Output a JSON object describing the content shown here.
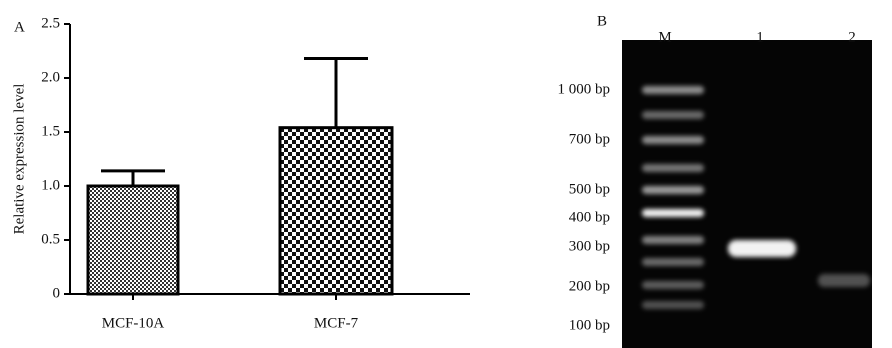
{
  "chart_data": [
    {
      "type": "bar",
      "title": "A",
      "y_label": "Relative expression level",
      "categories": [
        "MCF-10A",
        "MCF-7"
      ],
      "values": [
        1.0,
        1.54
      ],
      "errors": [
        0.14,
        0.64
      ],
      "ylim": [
        0,
        2.5
      ],
      "yticks": [
        0,
        0.5,
        {
          "value": 1,
          "label": "1.0"
        },
        1.5,
        {
          "value": 2,
          "label": "2.0"
        },
        2.5
      ]
    },
    {
      "type": "gel",
      "title": "B",
      "lanes": [
        "M",
        "1",
        "2"
      ],
      "markers": [
        "1 000 bp",
        "700 bp",
        "500 bp",
        "400 bp",
        "300 bp",
        "200 bp",
        "100 bp"
      ]
    }
  ]
}
